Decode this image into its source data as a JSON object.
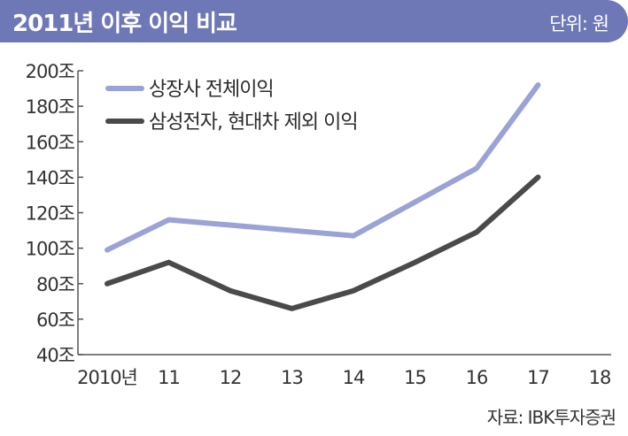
{
  "header": {
    "title": "2011년 이후 이익 비교",
    "unit": "단위: 원"
  },
  "source": "자료: IBK투자증권",
  "colors": {
    "header_bg": "#6f78b7",
    "series_1": "#9aa3d6",
    "series_2": "#4a4a4a"
  },
  "chart_data": {
    "type": "line",
    "title": "2011년 이후 이익 비교",
    "ylabel": "",
    "xlabel": "",
    "ylim": [
      40,
      200
    ],
    "yticks": [
      200,
      180,
      160,
      140,
      120,
      100,
      80,
      60,
      40
    ],
    "ytick_labels": [
      "200조",
      "180조",
      "160조",
      "140조",
      "120조",
      "100조",
      "80조",
      "60조",
      "40조"
    ],
    "categories": [
      "2010년",
      "11",
      "12",
      "13",
      "14",
      "15",
      "16",
      "17",
      "18"
    ],
    "legend_position": "top-left",
    "series": [
      {
        "name": "상장사 전체이익",
        "color": "#9aa3d6",
        "values": [
          99,
          116,
          113,
          110,
          107,
          126,
          145,
          192,
          null
        ]
      },
      {
        "name": "삼성전자, 현대차 제외 이익",
        "color": "#4a4a4a",
        "values": [
          80,
          92,
          76,
          66,
          76,
          92,
          109,
          140,
          null
        ]
      }
    ]
  }
}
